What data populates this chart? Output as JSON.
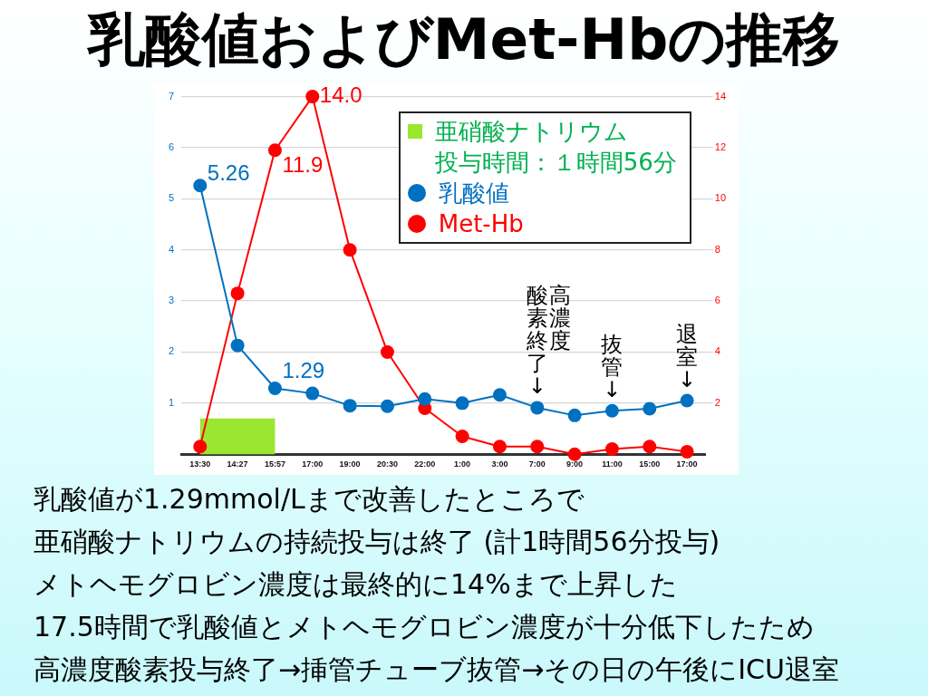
{
  "chart_data": {
    "type": "line",
    "title": "乳酸値およびMet-Hbの推移",
    "categories": [
      "13:30",
      "14:27",
      "15:57",
      "17:00",
      "19:00",
      "20:30",
      "22:00",
      "1:00",
      "3:00",
      "7:00",
      "9:00",
      "11:00",
      "15:00",
      "17:00"
    ],
    "series": [
      {
        "name": "乳酸値",
        "color": "#0070c0",
        "values": [
          5.26,
          2.13,
          1.29,
          1.19,
          0.95,
          0.94,
          1.08,
          1.0,
          1.16,
          0.91,
          0.76,
          0.85,
          0.89,
          1.05
        ],
        "value_labels": [
          "5.26",
          null,
          "1.29",
          null,
          null,
          null,
          null,
          null,
          null,
          null,
          null,
          null,
          null,
          null
        ]
      },
      {
        "name": "Met-Hb",
        "color": "#ff0000",
        "axis": "y2",
        "values": [
          0.3,
          6.3,
          11.9,
          14.0,
          8.0,
          4.0,
          1.8,
          0.7,
          0.3,
          0.3,
          0.0,
          0.2,
          0.3,
          0.1
        ],
        "value_labels": [
          null,
          null,
          "11.9",
          "14.0",
          null,
          null,
          null,
          null,
          null,
          null,
          null,
          null,
          null,
          null
        ]
      }
    ],
    "ylim": [
      0,
      7
    ],
    "yticks": [
      1,
      2,
      3,
      4,
      5,
      6,
      7
    ],
    "y2lim": [
      0,
      14
    ],
    "y2ticks": [
      2,
      4,
      6,
      8,
      10,
      12,
      14
    ],
    "grid": "y",
    "legend": "top right",
    "marker": "circle",
    "bands": [
      {
        "axis": "x",
        "from": "13:30",
        "to": "15:57",
        "label": "亜硝酸ナトリウム投与時間：１時間56分",
        "color": "#9be630"
      }
    ],
    "annotations": [
      {
        "text": "高濃度酸素終了↓",
        "x": "7:00",
        "y": 0.91
      },
      {
        "text": "抜管↓",
        "x": "11:00",
        "y": 0.85
      },
      {
        "text": "退室↓",
        "y": 1.05
      },
      "乳酸値が1.29mmol/Lまで改善したところで",
      "亜硝酸ナトリウムの持続投与は終了 (計1時間56分投与)",
      "メトヘモグロビン濃度は最終的に14%まで上昇した",
      "17.5時間で乳酸値とメトヘモグロビン濃度が十分低下したため",
      "高濃度酸素投与終了→挿管チューブ抜管→その日の午後にICU退室"
    ]
  }
}
